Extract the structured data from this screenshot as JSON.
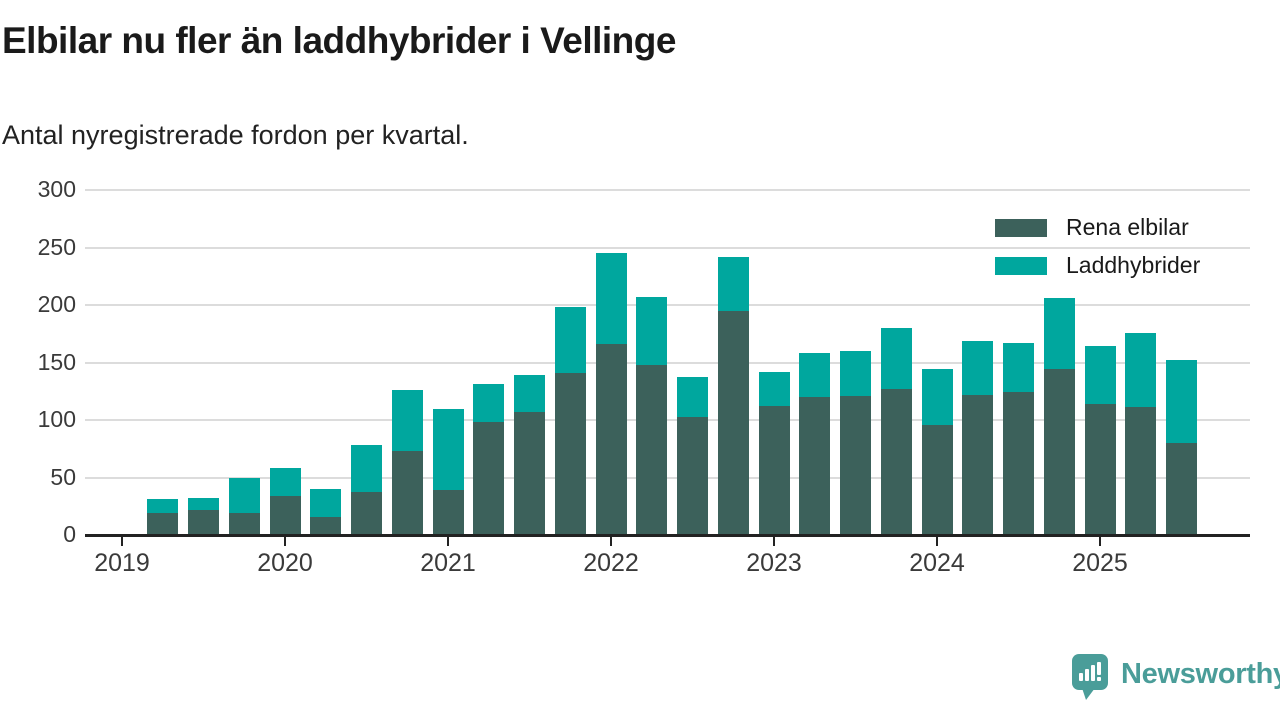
{
  "header": {
    "title": "Elbilar nu fler än laddhybrider i Vellinge",
    "subtitle": "Antal nyregistrerade fordon per kvartal."
  },
  "legend": {
    "items": [
      {
        "label": "Rena elbilar",
        "color": "#3c615b"
      },
      {
        "label": "Laddhybrider",
        "color": "#00a79e"
      }
    ]
  },
  "chart_data": {
    "type": "bar",
    "stacked": true,
    "title": "Elbilar nu fler än laddhybrider i Vellinge",
    "subtitle": "Antal nyregistrerade fordon per kvartal.",
    "categories": [
      "2019 Q2",
      "2019 Q3",
      "2019 Q4",
      "2020 Q1",
      "2020 Q2",
      "2020 Q3",
      "2020 Q4",
      "2021 Q1",
      "2021 Q2",
      "2021 Q3",
      "2021 Q4",
      "2022 Q1",
      "2022 Q2",
      "2022 Q3",
      "2022 Q4",
      "2023 Q1",
      "2023 Q2",
      "2023 Q3",
      "2023 Q4",
      "2024 Q1",
      "2024 Q2",
      "2024 Q3",
      "2024 Q4",
      "2025 Q1",
      "2025 Q2",
      "2025 Q3"
    ],
    "series": [
      {
        "name": "Rena elbilar",
        "color": "#3c615b",
        "values": [
          19,
          22,
          19,
          34,
          16,
          37,
          73,
          39,
          98,
          107,
          141,
          166,
          148,
          103,
          195,
          112,
          120,
          121,
          127,
          96,
          122,
          124,
          144,
          114,
          111,
          80
        ]
      },
      {
        "name": "Laddhybrider",
        "color": "#00a79e",
        "values": [
          12,
          10,
          31,
          24,
          24,
          41,
          53,
          71,
          33,
          32,
          57,
          79,
          59,
          34,
          47,
          30,
          38,
          39,
          53,
          48,
          47,
          43,
          62,
          50,
          65,
          72
        ]
      }
    ],
    "x_tick_labels": [
      "2019",
      "2020",
      "2021",
      "2022",
      "2023",
      "2024",
      "2025"
    ],
    "y_ticks": [
      0,
      50,
      100,
      150,
      200,
      250,
      300
    ],
    "ylim": [
      0,
      300
    ],
    "xlabel": "",
    "ylabel": "",
    "grid": "horizontal",
    "legend_position": "top-right"
  },
  "footer": {
    "brand": "Newsworthy",
    "logo_color": "#4a9d99"
  },
  "colors": {
    "axis_text": "#3a3a3a",
    "gridline": "#dcdcdc",
    "axis_line": "#222222",
    "title_text": "#1a1a1a",
    "background": "#ffffff"
  }
}
